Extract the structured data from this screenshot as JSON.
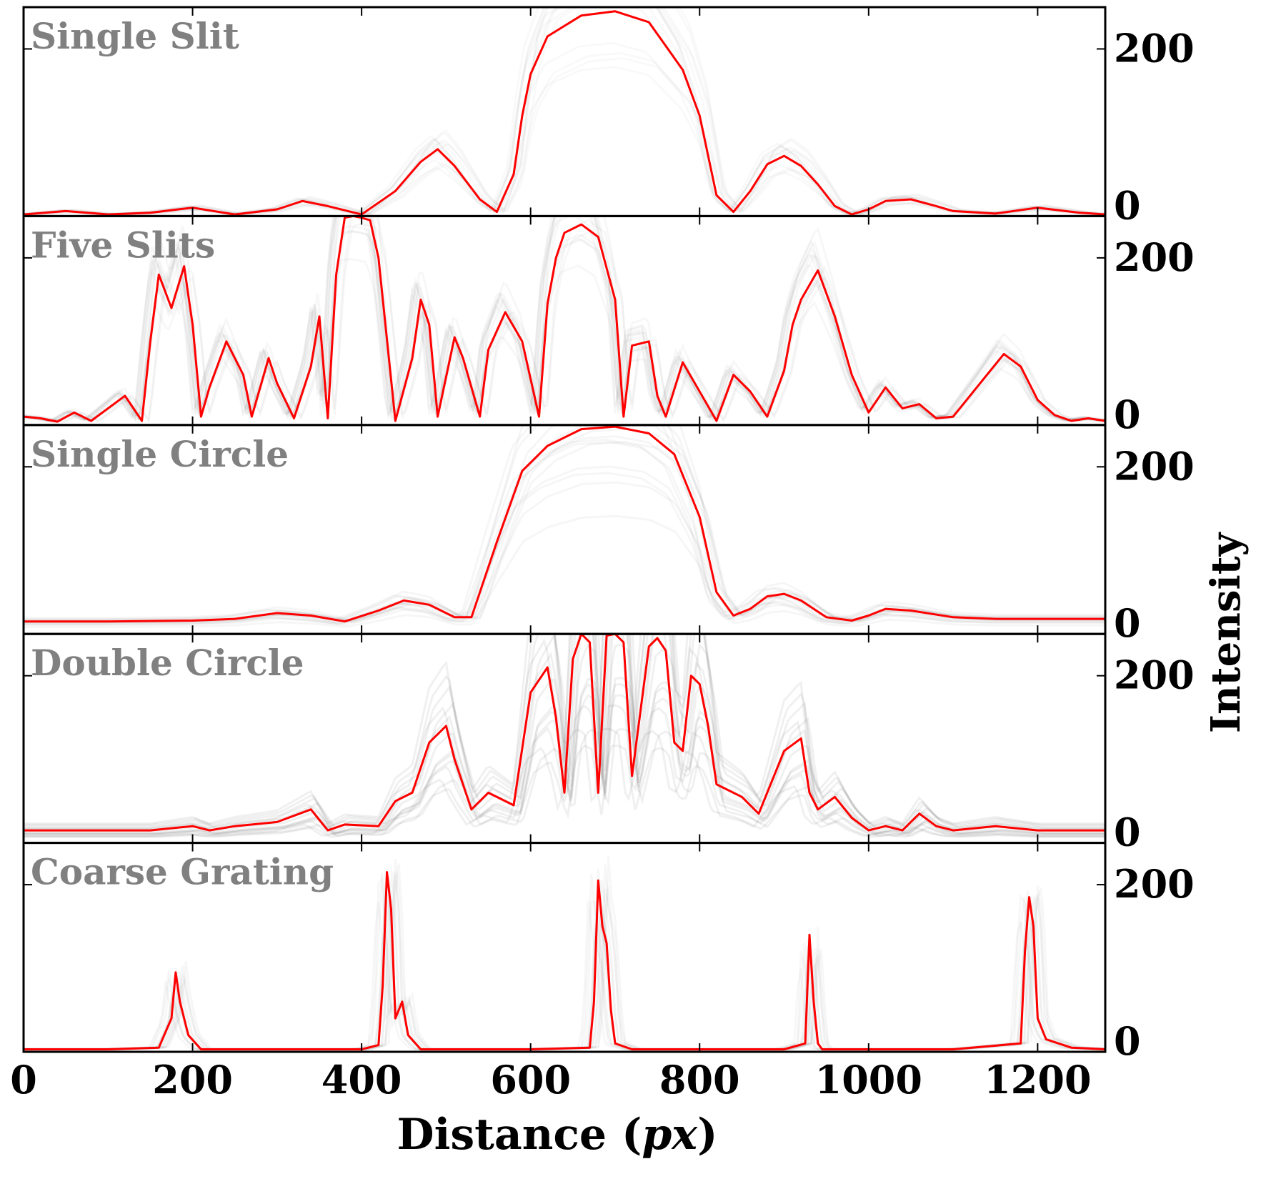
{
  "figure": {
    "x_axis_label": "Distance (px)",
    "x_axis_label_main": "Distance (",
    "x_axis_label_unit": "px",
    "x_axis_label_close": ")",
    "y_axis_label": "Intensity"
  },
  "colors": {
    "main_line": "#ff0000",
    "background_traces": "#000000",
    "panel_title": "#808080",
    "axes": "#000000"
  },
  "chart_data": {
    "type": "line",
    "xlim": [
      0,
      1280
    ],
    "ylim": [
      0,
      250
    ],
    "x_ticks": [
      0,
      200,
      400,
      600,
      800,
      1000,
      1200
    ],
    "y_ticks": [
      0,
      200
    ],
    "x_tick_labels": [
      "0",
      "200",
      "400",
      "600",
      "800",
      "1000",
      "1200"
    ],
    "y_tick_labels": [
      "0",
      "200"
    ],
    "xlabel": "Distance (px)",
    "ylabel": "Intensity",
    "panels": [
      {
        "title": "Single Slit",
        "background_opacity": 0.025,
        "background_spread": 0.35,
        "x": [
          0,
          50,
          100,
          150,
          200,
          250,
          300,
          330,
          360,
          400,
          440,
          470,
          490,
          510,
          540,
          560,
          580,
          590,
          600,
          620,
          660,
          700,
          740,
          780,
          800,
          820,
          840,
          860,
          880,
          900,
          920,
          940,
          960,
          980,
          1000,
          1020,
          1050,
          1080,
          1100,
          1150,
          1200,
          1250,
          1280
        ],
        "y": [
          2,
          6,
          2,
          4,
          10,
          2,
          8,
          18,
          12,
          2,
          30,
          65,
          80,
          60,
          20,
          5,
          50,
          120,
          170,
          215,
          240,
          245,
          232,
          175,
          120,
          25,
          5,
          30,
          62,
          72,
          60,
          38,
          12,
          2,
          8,
          18,
          20,
          12,
          6,
          3,
          10,
          4,
          2
        ]
      },
      {
        "title": "Five Slits",
        "background_opacity": 0.03,
        "background_spread": 0.3,
        "x": [
          0,
          20,
          40,
          60,
          80,
          100,
          120,
          140,
          150,
          160,
          175,
          190,
          200,
          210,
          220,
          240,
          260,
          270,
          290,
          300,
          320,
          340,
          350,
          360,
          370,
          380,
          390,
          400,
          410,
          420,
          440,
          460,
          470,
          480,
          490,
          510,
          520,
          540,
          550,
          570,
          590,
          610,
          620,
          630,
          640,
          660,
          680,
          700,
          710,
          720,
          740,
          750,
          760,
          780,
          800,
          820,
          840,
          860,
          880,
          900,
          910,
          920,
          940,
          960,
          980,
          1000,
          1020,
          1040,
          1060,
          1080,
          1100,
          1140,
          1160,
          1180,
          1200,
          1220,
          1240,
          1260,
          1280
        ],
        "y": [
          10,
          8,
          4,
          15,
          5,
          20,
          35,
          5,
          100,
          180,
          140,
          190,
          120,
          10,
          45,
          100,
          60,
          10,
          80,
          50,
          8,
          70,
          130,
          8,
          180,
          248,
          250,
          248,
          245,
          200,
          5,
          80,
          150,
          120,
          10,
          105,
          80,
          10,
          90,
          135,
          100,
          10,
          145,
          200,
          230,
          240,
          225,
          150,
          10,
          95,
          100,
          35,
          10,
          75,
          40,
          5,
          60,
          40,
          10,
          65,
          120,
          150,
          185,
          130,
          60,
          15,
          45,
          20,
          25,
          8,
          10,
          60,
          85,
          70,
          30,
          12,
          5,
          8,
          5
        ]
      },
      {
        "title": "Single Circle",
        "background_opacity": 0.035,
        "background_spread": 0.45,
        "x": [
          0,
          100,
          200,
          250,
          300,
          340,
          380,
          420,
          450,
          480,
          510,
          530,
          560,
          590,
          620,
          660,
          700,
          740,
          770,
          800,
          820,
          840,
          860,
          880,
          900,
          920,
          950,
          980,
          1000,
          1020,
          1050,
          1100,
          1150,
          1200,
          1280
        ],
        "y": [
          15,
          15,
          16,
          18,
          25,
          22,
          15,
          28,
          40,
          35,
          20,
          20,
          110,
          195,
          225,
          245,
          248,
          240,
          215,
          140,
          50,
          22,
          30,
          45,
          48,
          40,
          20,
          16,
          22,
          30,
          28,
          20,
          18,
          18,
          18
        ]
      },
      {
        "title": "Double Circle",
        "background_opacity": 0.06,
        "background_spread": 0.55,
        "x": [
          0,
          50,
          100,
          150,
          200,
          220,
          250,
          300,
          340,
          360,
          380,
          420,
          440,
          460,
          480,
          500,
          510,
          530,
          550,
          580,
          600,
          620,
          630,
          640,
          650,
          660,
          670,
          680,
          690,
          700,
          710,
          720,
          740,
          750,
          760,
          770,
          780,
          790,
          800,
          810,
          820,
          850,
          870,
          900,
          920,
          930,
          940,
          960,
          980,
          1000,
          1020,
          1040,
          1060,
          1080,
          1100,
          1150,
          1200,
          1280
        ],
        "y": [
          15,
          15,
          15,
          15,
          20,
          15,
          20,
          25,
          40,
          15,
          22,
          20,
          50,
          60,
          120,
          140,
          100,
          40,
          60,
          45,
          180,
          210,
          150,
          60,
          220,
          250,
          240,
          60,
          248,
          250,
          240,
          80,
          235,
          245,
          230,
          120,
          110,
          200,
          190,
          140,
          70,
          55,
          35,
          110,
          125,
          60,
          40,
          55,
          30,
          15,
          20,
          15,
          35,
          20,
          15,
          20,
          15,
          15
        ]
      },
      {
        "title": "Coarse Grating",
        "background_opacity": 0.03,
        "background_spread": 0.25,
        "x": [
          0,
          100,
          160,
          175,
          180,
          185,
          195,
          210,
          300,
          400,
          420,
          425,
          430,
          435,
          440,
          448,
          455,
          470,
          600,
          670,
          675,
          680,
          685,
          690,
          695,
          700,
          720,
          900,
          925,
          930,
          935,
          940,
          945,
          960,
          1100,
          1180,
          1185,
          1190,
          1195,
          1200,
          1210,
          1240,
          1280
        ],
        "y": [
          3,
          3,
          5,
          40,
          95,
          60,
          20,
          3,
          3,
          3,
          8,
          80,
          215,
          170,
          40,
          60,
          20,
          3,
          3,
          5,
          60,
          205,
          150,
          130,
          50,
          10,
          3,
          3,
          10,
          140,
          60,
          10,
          3,
          3,
          3,
          10,
          120,
          185,
          150,
          40,
          15,
          5,
          3
        ]
      }
    ]
  }
}
